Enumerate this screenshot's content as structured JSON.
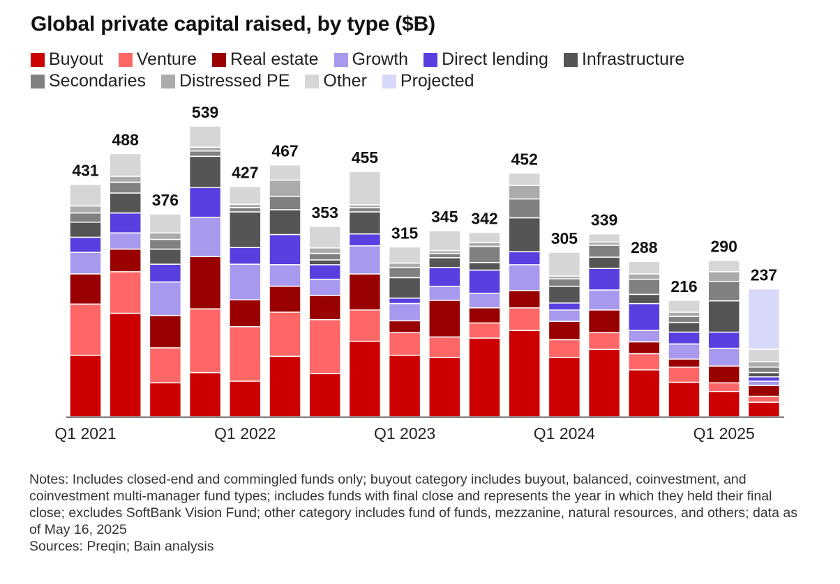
{
  "title": "Global private capital raised, by type ($B)",
  "legend": [
    {
      "label": "Buyout",
      "color": "#cc0000"
    },
    {
      "label": "Venture",
      "color": "#ff6666"
    },
    {
      "label": "Real estate",
      "color": "#990000"
    },
    {
      "label": "Growth",
      "color": "#a899ee"
    },
    {
      "label": "Direct lending",
      "color": "#5a3fe0"
    },
    {
      "label": "Infrastructure",
      "color": "#555555"
    },
    {
      "label": "Secondaries",
      "color": "#808080"
    },
    {
      "label": "Distressed PE",
      "color": "#ababab"
    },
    {
      "label": "Other",
      "color": "#d6d6d6"
    },
    {
      "label": "Projected",
      "color": "#d8d8fa"
    }
  ],
  "chart_data": {
    "type": "bar",
    "stacked": true,
    "x_tick_labels": [
      "Q1 2021",
      "Q1 2022",
      "Q1 2023",
      "Q1 2024",
      "Q1 2025"
    ],
    "x_tick_positions": [
      0,
      4,
      8,
      12,
      16
    ],
    "totals": [
      431,
      488,
      376,
      539,
      427,
      467,
      353,
      455,
      315,
      345,
      342,
      452,
      305,
      339,
      288,
      216,
      290,
      237
    ],
    "series": [
      {
        "name": "Buyout",
        "values": [
          114,
          192,
          63,
          82,
          66,
          112,
          80,
          140,
          114,
          110,
          146,
          160,
          110,
          125,
          87,
          64,
          47,
          27
        ]
      },
      {
        "name": "Venture",
        "values": [
          95,
          77,
          65,
          118,
          101,
          82,
          100,
          58,
          42,
          38,
          28,
          42,
          33,
          31,
          30,
          28,
          16,
          11
        ]
      },
      {
        "name": "Real estate",
        "values": [
          56,
          42,
          60,
          97,
          50,
          48,
          45,
          67,
          22,
          68,
          28,
          32,
          34,
          42,
          22,
          15,
          31,
          20
        ]
      },
      {
        "name": "Growth",
        "values": [
          40,
          30,
          62,
          73,
          66,
          40,
          30,
          52,
          32,
          26,
          27,
          48,
          21,
          37,
          21,
          28,
          33,
          8
        ]
      },
      {
        "name": "Direct lending",
        "values": [
          28,
          37,
          33,
          55,
          31,
          56,
          27,
          22,
          10,
          35,
          43,
          24,
          13,
          40,
          50,
          22,
          30,
          8
        ]
      },
      {
        "name": "Infrastructure",
        "values": [
          28,
          37,
          28,
          58,
          66,
          46,
          9,
          41,
          38,
          18,
          14,
          63,
          31,
          21,
          17,
          18,
          58,
          8
        ]
      },
      {
        "name": "Secondaries",
        "values": [
          17,
          20,
          18,
          10,
          8,
          25,
          12,
          8,
          19,
          8,
          30,
          35,
          14,
          22,
          28,
          11,
          36,
          10
        ]
      },
      {
        "name": "Distressed PE",
        "values": [
          13,
          11,
          12,
          7,
          6,
          30,
          10,
          5,
          8,
          5,
          7,
          25,
          5,
          6,
          10,
          8,
          18,
          10
        ]
      },
      {
        "name": "Other",
        "values": [
          40,
          42,
          35,
          39,
          33,
          28,
          40,
          62,
          30,
          37,
          19,
          23,
          44,
          15,
          23,
          22,
          21,
          23
        ]
      },
      {
        "name": "Projected",
        "values": [
          0,
          0,
          0,
          0,
          0,
          0,
          0,
          0,
          0,
          0,
          0,
          0,
          0,
          0,
          0,
          0,
          0,
          112
        ]
      }
    ]
  },
  "notes": "Notes: Includes closed-end and commingled funds only; buyout category includes buyout, balanced, coinvestment, and coinvestment multi-manager fund types; includes funds with final close and represents the year in which they held their final close; excludes SoftBank Vision Fund; other category includes fund of funds, mezzanine, natural resources, and others; data as of May 16, 2025",
  "sources": "Sources: Preqin; Bain analysis"
}
